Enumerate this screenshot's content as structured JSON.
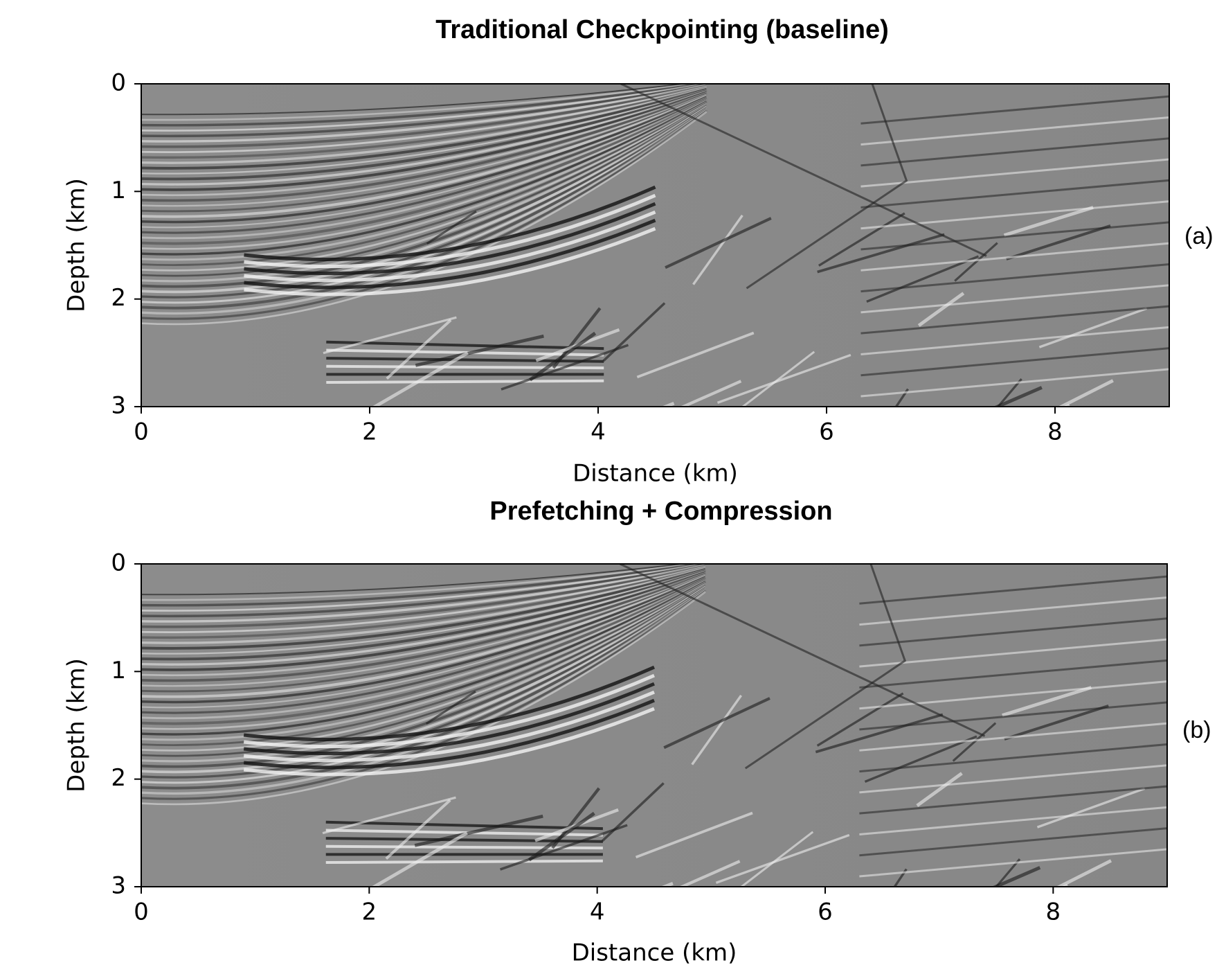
{
  "chart_data": [
    {
      "type": "image",
      "title": "Traditional Checkpointing (baseline)",
      "xlabel": "Distance (km)",
      "ylabel": "Depth (km)",
      "panel_label": "(a)",
      "xlim": [
        0,
        9
      ],
      "ylim": [
        3,
        0
      ],
      "xticks": [
        0,
        2,
        4,
        6,
        8
      ],
      "yticks": [
        0,
        1,
        2,
        3
      ]
    },
    {
      "type": "image",
      "title": "Prefetching + Compression",
      "xlabel": "Distance (km)",
      "ylabel": "Depth (km)",
      "panel_label": "(b)",
      "xlim": [
        0,
        9
      ],
      "ylim": [
        3,
        0
      ],
      "xticks": [
        0,
        2,
        4,
        6,
        8
      ],
      "yticks": [
        0,
        1,
        2,
        3
      ]
    }
  ]
}
